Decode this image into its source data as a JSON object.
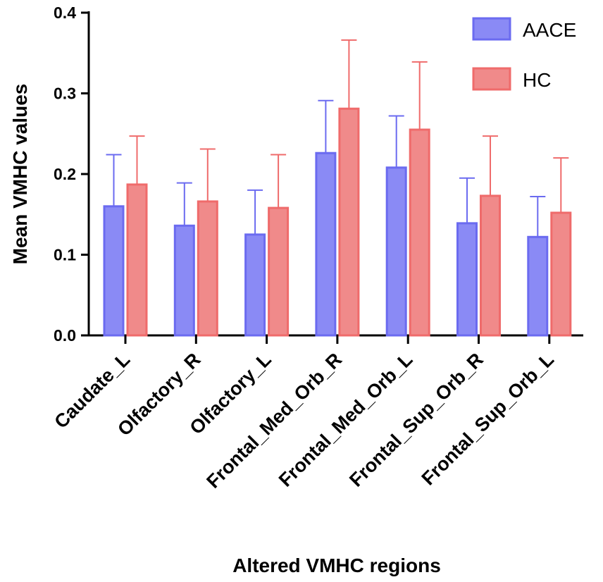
{
  "chart_data": {
    "type": "bar",
    "title": "",
    "xlabel": "Altered VMHC regions",
    "ylabel": "Mean VMHC values",
    "ylim": [
      0,
      0.4
    ],
    "yticks": [
      "0.0",
      "0.1",
      "0.2",
      "0.3",
      "0.4"
    ],
    "categories": [
      "Caudate_L",
      "Olfactory_R",
      "Olfactory_L",
      "Frontal_Med_Orb_R",
      "Frontal_Med_Orb_L",
      "Frontal_Sup_Orb_R",
      "Frontal_Sup_Orb_L"
    ],
    "series": [
      {
        "name": "AACE",
        "color": "#6b6bf0",
        "fill": "#8a8af5",
        "values": [
          0.16,
          0.136,
          0.125,
          0.226,
          0.208,
          0.139,
          0.122
        ],
        "errors": [
          0.064,
          0.053,
          0.055,
          0.065,
          0.064,
          0.056,
          0.05
        ]
      },
      {
        "name": "HC",
        "color": "#ef6b6b",
        "fill": "#f08a8a",
        "values": [
          0.187,
          0.166,
          0.158,
          0.281,
          0.255,
          0.173,
          0.152
        ],
        "errors": [
          0.06,
          0.065,
          0.066,
          0.085,
          0.084,
          0.074,
          0.068
        ]
      }
    ],
    "legend": [
      {
        "label": "AACE",
        "color": "#6b6bf0",
        "fill": "#8a8af5"
      },
      {
        "label": "HC",
        "color": "#ef6b6b",
        "fill": "#f08a8a"
      }
    ],
    "legend_position": "top-right",
    "grid": false
  }
}
